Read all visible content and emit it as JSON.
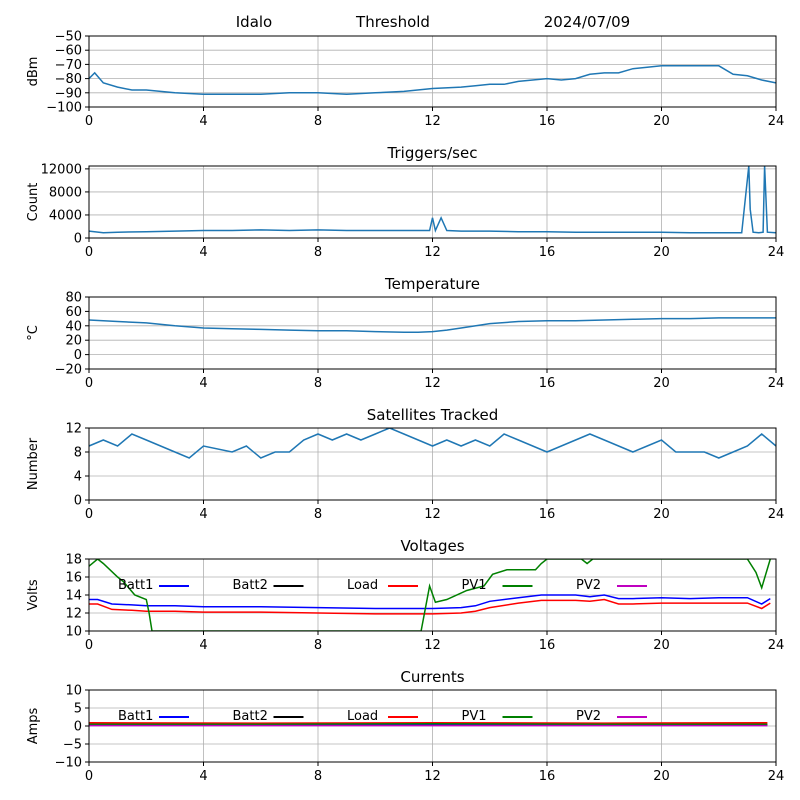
{
  "header": {
    "station": "Idalo",
    "mode": "Threshold",
    "date": "2024/07/09"
  },
  "colors": {
    "series": "#1f77b4",
    "grid": "#b0b0b0",
    "batt1": "#0000ff",
    "batt2": "#000000",
    "load": "#ff0000",
    "pv1": "#008000",
    "pv2": "#bf00bf"
  },
  "chart_data": [
    {
      "type": "line",
      "title": "",
      "xlabel": "",
      "ylabel": "dBm",
      "xlim": [
        0,
        24
      ],
      "ylim": [
        -100,
        -50
      ],
      "xticks": [
        0,
        4,
        8,
        12,
        16,
        20,
        24
      ],
      "yticks": [
        -100,
        -90,
        -80,
        -70,
        -60,
        -50
      ],
      "grid": true,
      "series": [
        {
          "color": "#1f77b4",
          "x": [
            0,
            0.2,
            0.5,
            1,
            1.5,
            2,
            3,
            4,
            5,
            6,
            7,
            8,
            9,
            10,
            11,
            12,
            13,
            13.5,
            14,
            14.5,
            15,
            15.5,
            16,
            16.5,
            17,
            17.5,
            18,
            18.5,
            19,
            19.5,
            20,
            21,
            22,
            22.5,
            23,
            23.5,
            24
          ],
          "y": [
            -80,
            -76,
            -83,
            -86,
            -88,
            -88,
            -90,
            -91,
            -91,
            -91,
            -90,
            -90,
            -91,
            -90,
            -89,
            -87,
            -86,
            -85,
            -84,
            -84,
            -82,
            -81,
            -80,
            -81,
            -80,
            -77,
            -76,
            -76,
            -73,
            -72,
            -71,
            -71,
            -71,
            -77,
            -78,
            -81,
            -83
          ]
        }
      ]
    },
    {
      "type": "line",
      "title": "Triggers/sec",
      "xlabel": "",
      "ylabel": "Count",
      "xlim": [
        0,
        24
      ],
      "ylim": [
        0,
        12500
      ],
      "xticks": [
        0,
        4,
        8,
        12,
        16,
        20,
        24
      ],
      "yticks": [
        0,
        4000,
        8000,
        12000
      ],
      "grid": true,
      "series": [
        {
          "color": "#1f77b4",
          "x": [
            0,
            0.5,
            1,
            2,
            3,
            4,
            5,
            6,
            7,
            8,
            9,
            10,
            11,
            11.9,
            12,
            12.1,
            12.3,
            12.5,
            13,
            14,
            15,
            16,
            17,
            18,
            19,
            20,
            21,
            22,
            22.8,
            23.05,
            23.1,
            23.2,
            23.4,
            23.55,
            23.6,
            23.7,
            24
          ],
          "y": [
            1200,
            900,
            1000,
            1100,
            1200,
            1300,
            1300,
            1400,
            1300,
            1400,
            1300,
            1300,
            1300,
            1300,
            3500,
            1300,
            3500,
            1300,
            1200,
            1200,
            1100,
            1100,
            1000,
            1000,
            1000,
            1000,
            900,
            900,
            900,
            12500,
            5000,
            1000,
            900,
            1000,
            12500,
            1000,
            900
          ]
        }
      ]
    },
    {
      "type": "line",
      "title": "Temperature",
      "xlabel": "",
      "ylabel": "°C",
      "xlim": [
        0,
        24
      ],
      "ylim": [
        -20,
        80
      ],
      "xticks": [
        0,
        4,
        8,
        12,
        16,
        20,
        24
      ],
      "yticks": [
        -20,
        0,
        20,
        40,
        60,
        80
      ],
      "grid": true,
      "series": [
        {
          "color": "#1f77b4",
          "x": [
            0,
            1,
            2,
            3,
            4,
            5,
            6,
            7,
            8,
            9,
            10,
            11,
            11.5,
            12,
            12.5,
            13,
            14,
            15,
            16,
            17,
            18,
            19,
            20,
            21,
            22,
            23,
            24
          ],
          "y": [
            48,
            46,
            44,
            40,
            37,
            36,
            35,
            34,
            33,
            33,
            32,
            31,
            31,
            32,
            34,
            37,
            43,
            46,
            47,
            47,
            48,
            49,
            50,
            50,
            51,
            51,
            51
          ]
        }
      ]
    },
    {
      "type": "line",
      "title": "Satellites Tracked",
      "xlabel": "",
      "ylabel": "Number",
      "xlim": [
        0,
        24
      ],
      "ylim": [
        0,
        12
      ],
      "xticks": [
        0,
        4,
        8,
        12,
        16,
        20,
        24
      ],
      "yticks": [
        0,
        4,
        8,
        12
      ],
      "grid": true,
      "series": [
        {
          "color": "#1f77b4",
          "x": [
            0,
            0.5,
            1,
            1.5,
            2,
            2.5,
            3,
            3.5,
            4,
            5,
            5.5,
            6,
            6.5,
            7,
            7.5,
            8,
            8.5,
            9,
            9.5,
            10,
            10.5,
            11,
            11.5,
            12,
            12.5,
            13,
            13.5,
            14,
            14.5,
            15,
            15.5,
            16,
            16.5,
            17,
            17.5,
            18,
            18.5,
            19,
            19.5,
            20,
            20.5,
            21,
            21.5,
            22,
            22.5,
            23,
            23.5,
            24
          ],
          "y": [
            9,
            10,
            9,
            11,
            10,
            9,
            8,
            7,
            9,
            8,
            9,
            7,
            8,
            8,
            10,
            11,
            10,
            11,
            10,
            11,
            12,
            11,
            10,
            9,
            10,
            9,
            10,
            9,
            11,
            10,
            9,
            8,
            9,
            10,
            11,
            10,
            9,
            8,
            9,
            10,
            8,
            8,
            8,
            7,
            8,
            9,
            11,
            9
          ]
        }
      ]
    },
    {
      "type": "line",
      "title": "Voltages",
      "xlabel": "",
      "ylabel": "Volts",
      "xlim": [
        0,
        24
      ],
      "ylim": [
        10,
        18
      ],
      "xticks": [
        0,
        4,
        8,
        12,
        16,
        20,
        24
      ],
      "yticks": [
        10,
        12,
        14,
        16,
        18
      ],
      "grid": true,
      "legend": "top inside, horizontal",
      "series": [
        {
          "name": "Batt1",
          "color": "#0000ff",
          "x": [
            0,
            0.3,
            0.8,
            1.5,
            2,
            3,
            4,
            6,
            8,
            10,
            12,
            13,
            13.5,
            14,
            15,
            15.8,
            16,
            17,
            17.5,
            18,
            18.5,
            19,
            20,
            21,
            22,
            23,
            23.5,
            23.8
          ],
          "y": [
            13.5,
            13.5,
            13,
            12.9,
            12.8,
            12.8,
            12.7,
            12.7,
            12.6,
            12.5,
            12.5,
            12.6,
            12.8,
            13.3,
            13.7,
            14,
            14,
            14,
            13.8,
            14,
            13.6,
            13.6,
            13.7,
            13.6,
            13.7,
            13.7,
            13,
            13.6
          ]
        },
        {
          "name": "Batt2",
          "color": "#000000",
          "x": [],
          "y": []
        },
        {
          "name": "Load",
          "color": "#ff0000",
          "x": [
            0,
            0.3,
            0.8,
            1.5,
            2,
            3,
            4,
            6,
            8,
            10,
            12,
            13,
            13.5,
            14,
            15,
            15.8,
            16,
            17,
            17.5,
            18,
            18.5,
            19,
            20,
            21,
            22,
            23,
            23.5,
            23.8
          ],
          "y": [
            13,
            13,
            12.4,
            12.3,
            12.2,
            12.2,
            12.1,
            12.1,
            12,
            11.9,
            11.9,
            12,
            12.2,
            12.6,
            13.1,
            13.4,
            13.4,
            13.4,
            13.3,
            13.5,
            13,
            13,
            13.1,
            13.1,
            13.1,
            13.1,
            12.5,
            13.1
          ]
        },
        {
          "name": "PV1",
          "color": "#008000",
          "x": [
            0,
            0.3,
            0.5,
            1,
            1.2,
            1.6,
            2,
            2.1,
            2.2,
            11.6,
            11.9,
            12.1,
            12.5,
            13.2,
            13.8,
            14.1,
            14.6,
            15,
            15.6,
            15.8,
            16,
            17.2,
            17.4,
            17.6,
            23,
            23.3,
            23.5,
            23.8
          ],
          "y": [
            17.2,
            18,
            17.5,
            16,
            15.5,
            14,
            13.5,
            12,
            10,
            10,
            15,
            13.2,
            13.5,
            14.5,
            15,
            16.3,
            16.8,
            16.8,
            16.8,
            17.5,
            18,
            18,
            17.5,
            18,
            18,
            16.5,
            14.8,
            18
          ]
        },
        {
          "name": "PV2",
          "color": "#bf00bf",
          "x": [],
          "y": []
        }
      ]
    },
    {
      "type": "line",
      "title": "Currents",
      "xlabel": "",
      "ylabel": "Amps",
      "xlim": [
        0,
        24
      ],
      "ylim": [
        -10,
        10
      ],
      "xticks": [
        0,
        4,
        8,
        12,
        16,
        20,
        24
      ],
      "yticks": [
        -10,
        -5,
        0,
        5,
        10
      ],
      "grid": true,
      "legend": "top inside, horizontal",
      "series": [
        {
          "name": "Batt1",
          "color": "#0000ff",
          "x": [
            0,
            6,
            12,
            18,
            23.7
          ],
          "y": [
            0.3,
            0.2,
            0.3,
            0.2,
            0.3
          ]
        },
        {
          "name": "Batt2",
          "color": "#000000",
          "x": [],
          "y": []
        },
        {
          "name": "Load",
          "color": "#ff0000",
          "x": [
            0,
            6,
            12,
            18,
            23.7
          ],
          "y": [
            0.9,
            0.8,
            0.9,
            0.8,
            0.9
          ]
        },
        {
          "name": "PV1",
          "color": "#008000",
          "x": [
            0,
            6,
            12,
            18,
            23.7
          ],
          "y": [
            0.5,
            0.5,
            0.6,
            0.5,
            0.5
          ]
        },
        {
          "name": "PV2",
          "color": "#bf00bf",
          "x": [
            0,
            6,
            12,
            18,
            23.7
          ],
          "y": [
            0.1,
            0.1,
            0.1,
            0.1,
            0.1
          ]
        }
      ]
    }
  ]
}
